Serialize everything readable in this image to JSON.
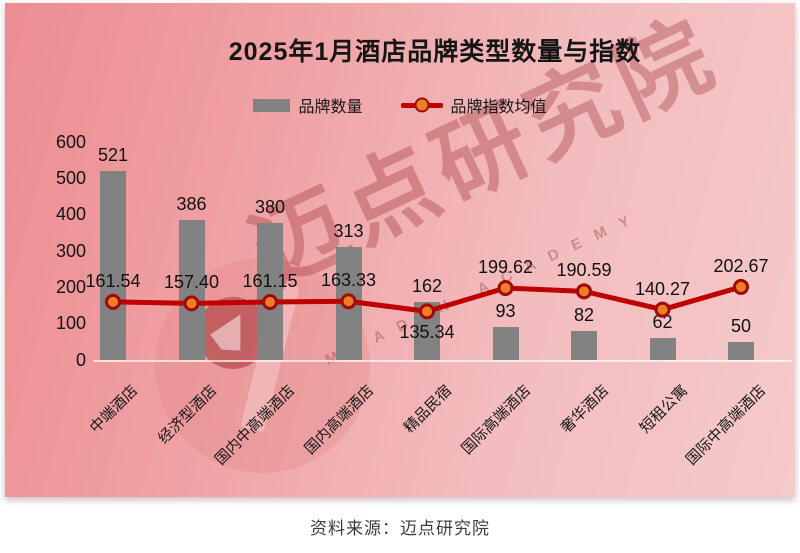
{
  "page": {
    "source_note": "资料来源：迈点研究院"
  },
  "watermark": {
    "cn": "迈点研究院",
    "en": "MEADIN ACADEMY"
  },
  "chart_data": {
    "type": "combo-bar-line",
    "title": "2025年1月酒店品牌类型数量与指数",
    "categories": [
      "中端酒店",
      "经济型酒店",
      "国内中高端酒店",
      "国内高端酒店",
      "精品民宿",
      "国际高端酒店",
      "奢华酒店",
      "短租公寓",
      "国际中高端酒店"
    ],
    "series": [
      {
        "name": "品牌数量",
        "type": "bar",
        "color": "#828282",
        "values": [
          521,
          386,
          380,
          313,
          162,
          93,
          82,
          62,
          50
        ]
      },
      {
        "name": "品牌指数均值",
        "type": "line",
        "color": "#c00000",
        "marker_color": "#ee7e23",
        "values": [
          161.54,
          157.4,
          161.15,
          163.33,
          135.34,
          199.62,
          190.59,
          140.27,
          202.67
        ]
      }
    ],
    "ylim": [
      0,
      600
    ],
    "yticks": [
      0,
      100,
      200,
      300,
      400,
      500,
      600
    ],
    "grid": false,
    "legend_position": "top",
    "line_label_side": [
      "above",
      "above",
      "above",
      "above",
      "below",
      "above",
      "above",
      "above",
      "above"
    ],
    "line_label_decimals": 2
  }
}
